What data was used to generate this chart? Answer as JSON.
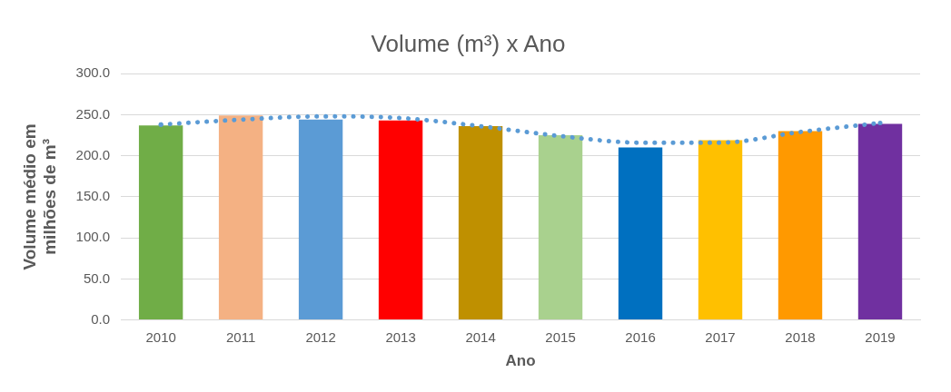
{
  "chart_data": {
    "type": "bar",
    "title": "Volume (m³) x Ano",
    "xlabel": "Ano",
    "ylabel": "Volume médio em milhões de m³",
    "categories": [
      "2010",
      "2011",
      "2012",
      "2013",
      "2014",
      "2015",
      "2016",
      "2017",
      "2018",
      "2019"
    ],
    "series": [
      {
        "colors": [
          "#70ad47",
          "#f4b183",
          "#5b9bd5",
          "#ff0000",
          "#bf9000",
          "#a9d18e",
          "#0070c0",
          "#ffc000",
          "#ff9900",
          "#7030a0"
        ],
        "values": [
          237,
          249,
          244,
          243,
          236,
          225,
          210,
          219,
          230,
          239
        ]
      },
      {
        "type": "line",
        "color": "#5b9bd5",
        "line_style": "dotted",
        "values": [
          238,
          244,
          248,
          246,
          236,
          224,
          216,
          216,
          229,
          240
        ]
      }
    ],
    "ylim": [
      0,
      300
    ],
    "yticks": [
      {
        "value": 0,
        "label": "0.0"
      },
      {
        "value": 50,
        "label": "50.0"
      },
      {
        "value": 100,
        "label": "100.0"
      },
      {
        "value": 150,
        "label": "150.0"
      },
      {
        "value": 200,
        "label": "200.0"
      },
      {
        "value": 250,
        "label": "250.0"
      },
      {
        "value": 300,
        "label": "300.0"
      }
    ],
    "grid": "y",
    "legend": false
  }
}
